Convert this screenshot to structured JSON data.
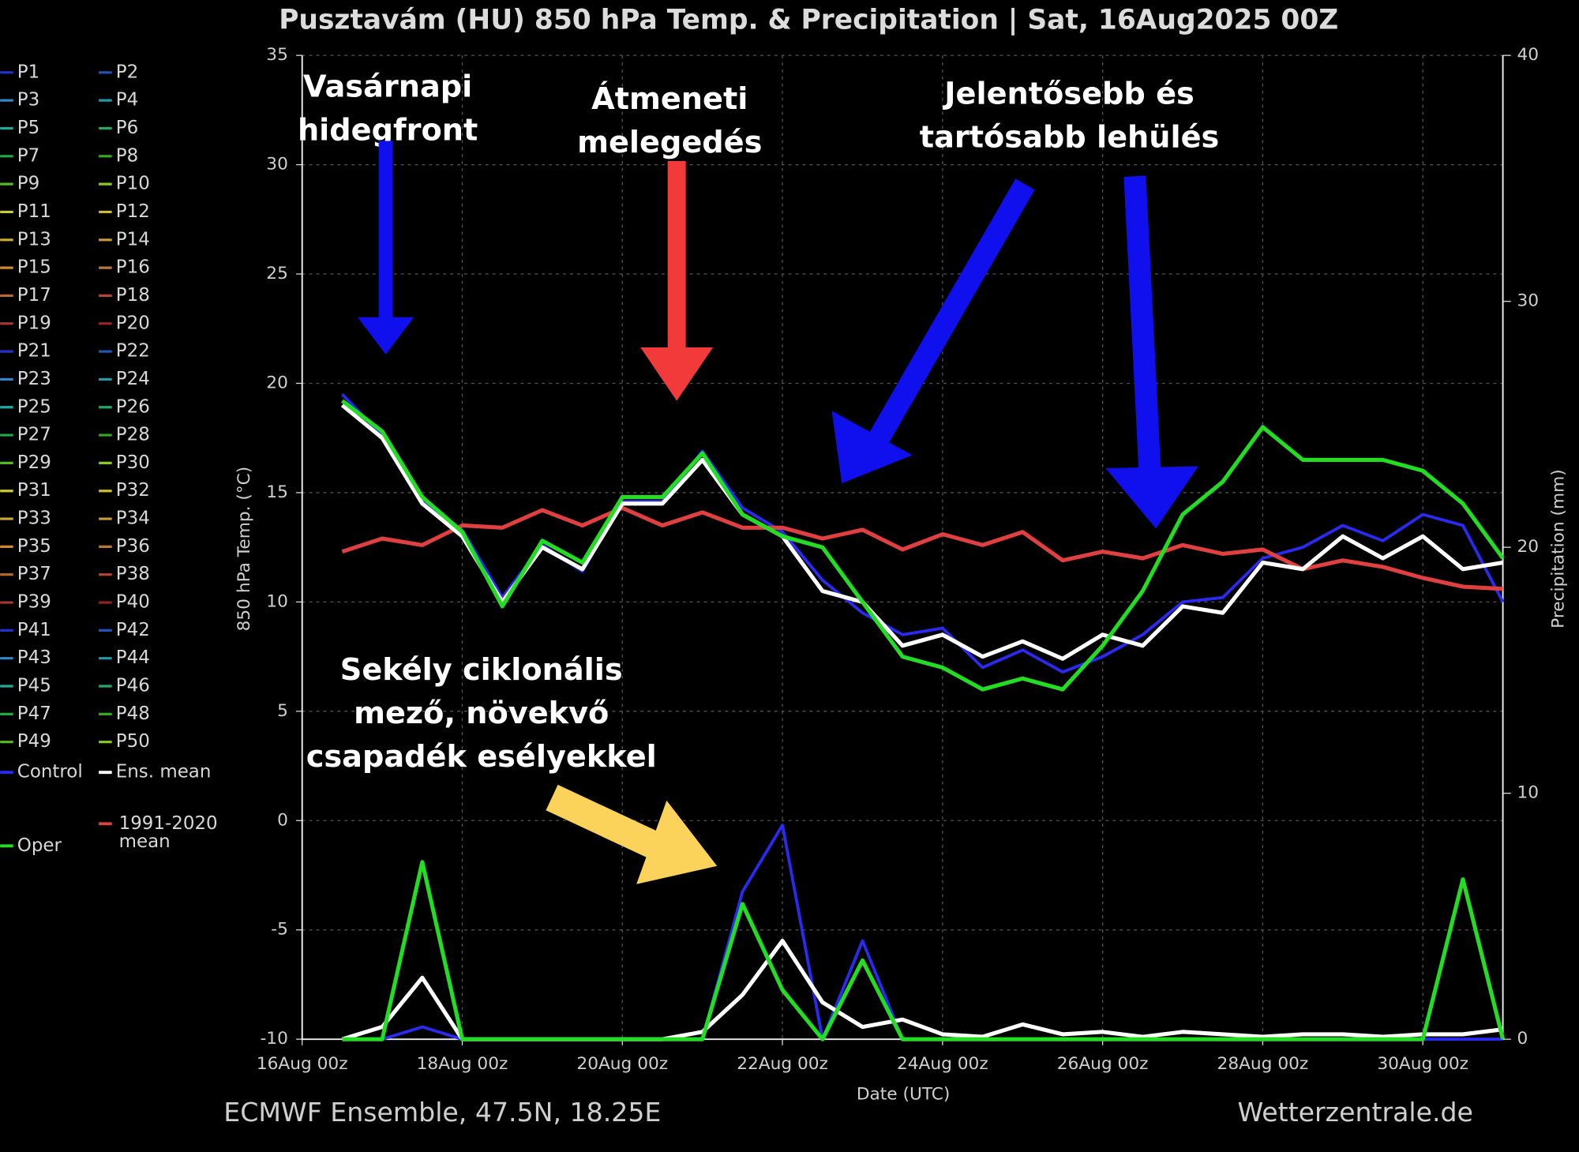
{
  "chart_data": {
    "type": "line",
    "title": "Pusztavám  (HU)  850 hPa Temp. & Precipitation | Sat, 16Aug2025 00Z",
    "ylabel": "850 hPa Temp. (°C)",
    "y2label": "Precipitation (mm)",
    "xlabel": "Date (UTC)",
    "source_left": "ECMWF Ensemble, 47.5N, 18.25E",
    "source_right": "Wetterzentrale.de",
    "xlim": [
      "2025-08-16T00:00Z",
      "2025-08-31T00:00Z"
    ],
    "xticks": [
      {
        "value": "2025-08-16T00:00Z",
        "label": "16Aug 00z"
      },
      {
        "value": "2025-08-18T00:00Z",
        "label": "18Aug 00z"
      },
      {
        "value": "2025-08-20T00:00Z",
        "label": "20Aug 00z"
      },
      {
        "value": "2025-08-22T00:00Z",
        "label": "22Aug 00z"
      },
      {
        "value": "2025-08-24T00:00Z",
        "label": "24Aug 00z"
      },
      {
        "value": "2025-08-26T00:00Z",
        "label": "26Aug 00z"
      },
      {
        "value": "2025-08-28T00:00Z",
        "label": "28Aug 00z"
      },
      {
        "value": "2025-08-30T00:00Z",
        "label": "30Aug 00z"
      }
    ],
    "ylim": [
      -10,
      35
    ],
    "yticks": [
      -10,
      -5,
      0,
      5,
      10,
      15,
      20,
      25,
      30,
      35
    ],
    "y2lim": [
      0,
      40
    ],
    "y2ticks": [
      0,
      10,
      20,
      30,
      40
    ],
    "grid": true,
    "x": [
      "2025-08-16T12:00Z",
      "2025-08-17T00:00Z",
      "2025-08-17T12:00Z",
      "2025-08-18T00:00Z",
      "2025-08-18T12:00Z",
      "2025-08-19T00:00Z",
      "2025-08-19T12:00Z",
      "2025-08-20T00:00Z",
      "2025-08-20T12:00Z",
      "2025-08-21T00:00Z",
      "2025-08-21T12:00Z",
      "2025-08-22T00:00Z",
      "2025-08-22T12:00Z",
      "2025-08-23T00:00Z",
      "2025-08-23T12:00Z",
      "2025-08-24T00:00Z",
      "2025-08-24T12:00Z",
      "2025-08-25T00:00Z",
      "2025-08-25T12:00Z",
      "2025-08-26T00:00Z",
      "2025-08-26T12:00Z",
      "2025-08-27T00:00Z",
      "2025-08-27T12:00Z",
      "2025-08-28T00:00Z",
      "2025-08-28T12:00Z",
      "2025-08-29T00:00Z",
      "2025-08-29T12:00Z",
      "2025-08-30T00:00Z",
      "2025-08-30T12:00Z",
      "2025-08-31T00:00Z"
    ],
    "series": [
      {
        "name": "Control",
        "color": "#2a2af0",
        "values": [
          19.5,
          17.6,
          14.6,
          13.3,
          10.2,
          12.6,
          11.4,
          14.6,
          14.6,
          16.9,
          14.3,
          13.2,
          11.0,
          9.5,
          8.5,
          8.8,
          7.0,
          7.8,
          6.8,
          7.5,
          8.5,
          10.0,
          10.2,
          12.0,
          12.5,
          13.5,
          12.8,
          14.0,
          13.5,
          10.0
        ],
        "y2_values": [
          0,
          0,
          0.5,
          0,
          0,
          0,
          0,
          0,
          0,
          0,
          6.0,
          8.7,
          0,
          4.0,
          0,
          0,
          0,
          0,
          0,
          0,
          0,
          0,
          0,
          0,
          0,
          0,
          0,
          0,
          0,
          0
        ]
      },
      {
        "name": "1991-2020 mean",
        "color": "#e04040",
        "values": [
          12.3,
          12.9,
          12.6,
          13.5,
          13.4,
          14.2,
          13.5,
          14.3,
          13.5,
          14.1,
          13.4,
          13.4,
          12.9,
          13.3,
          12.4,
          13.1,
          12.6,
          13.2,
          11.9,
          12.3,
          12.0,
          12.6,
          12.2,
          12.4,
          11.5,
          11.9,
          11.6,
          11.1,
          10.7,
          10.6
        ]
      },
      {
        "name": "Ens. mean",
        "color": "#ffffff",
        "values": [
          19.0,
          17.5,
          14.5,
          13.0,
          10.0,
          12.5,
          11.5,
          14.5,
          14.5,
          16.5,
          14.0,
          13.0,
          10.5,
          10.0,
          8.0,
          8.5,
          7.5,
          8.2,
          7.4,
          8.5,
          8.0,
          9.8,
          9.5,
          11.8,
          11.5,
          13.0,
          12.0,
          13.0,
          11.5,
          11.8
        ],
        "y2_values": [
          0,
          0.5,
          2.5,
          0,
          0,
          0,
          0,
          0,
          0,
          0.3,
          1.8,
          4.0,
          1.5,
          0.5,
          0.8,
          0.2,
          0.1,
          0.6,
          0.2,
          0.3,
          0.1,
          0.3,
          0.2,
          0.1,
          0.2,
          0.2,
          0.1,
          0.2,
          0.2,
          0.4
        ]
      },
      {
        "name": "Oper",
        "color": "#22dd22",
        "values": [
          19.2,
          17.8,
          14.8,
          13.2,
          9.8,
          12.8,
          11.8,
          14.8,
          14.8,
          16.8,
          14.0,
          13.0,
          12.5,
          10.0,
          7.5,
          7.0,
          6.0,
          6.5,
          6.0,
          8.0,
          10.5,
          14.0,
          15.5,
          18.0,
          16.5,
          16.5,
          16.5,
          16.0,
          14.5,
          12.0
        ],
        "y2_values": [
          0,
          0,
          7.2,
          0,
          0,
          0,
          0,
          0,
          0,
          0,
          5.5,
          2.0,
          0,
          3.2,
          0,
          0,
          0,
          0,
          0,
          0,
          0,
          0,
          0,
          0,
          0,
          0,
          0,
          0,
          6.5,
          0
        ]
      }
    ],
    "legend_members": [
      {
        "name": "P1",
        "color": "#2233cc"
      },
      {
        "name": "P2",
        "color": "#2255bb"
      },
      {
        "name": "P3",
        "color": "#3388cc"
      },
      {
        "name": "P4",
        "color": "#2299aa"
      },
      {
        "name": "P5",
        "color": "#22aa99"
      },
      {
        "name": "P6",
        "color": "#22aa66"
      },
      {
        "name": "P7",
        "color": "#22aa44"
      },
      {
        "name": "P8",
        "color": "#33aa22"
      },
      {
        "name": "P9",
        "color": "#55bb22"
      },
      {
        "name": "P10",
        "color": "#88cc22"
      },
      {
        "name": "P11",
        "color": "#cccc33"
      },
      {
        "name": "P12",
        "color": "#ccbb33"
      },
      {
        "name": "P13",
        "color": "#ccaa33"
      },
      {
        "name": "P14",
        "color": "#cc9933"
      },
      {
        "name": "P15",
        "color": "#cc8833"
      },
      {
        "name": "P16",
        "color": "#bb7733"
      },
      {
        "name": "P17",
        "color": "#bb6633"
      },
      {
        "name": "P18",
        "color": "#bb4433"
      },
      {
        "name": "P19",
        "color": "#aa3333"
      },
      {
        "name": "P20",
        "color": "#992222"
      },
      {
        "name": "P21",
        "color": "#2233cc"
      },
      {
        "name": "P22",
        "color": "#2255bb"
      },
      {
        "name": "P23",
        "color": "#3388cc"
      },
      {
        "name": "P24",
        "color": "#2299aa"
      },
      {
        "name": "P25",
        "color": "#22aa99"
      },
      {
        "name": "P26",
        "color": "#22aa66"
      },
      {
        "name": "P27",
        "color": "#22aa44"
      },
      {
        "name": "P28",
        "color": "#33aa22"
      },
      {
        "name": "P29",
        "color": "#55bb22"
      },
      {
        "name": "P30",
        "color": "#88cc22"
      },
      {
        "name": "P31",
        "color": "#cccc33"
      },
      {
        "name": "P32",
        "color": "#ccbb33"
      },
      {
        "name": "P33",
        "color": "#ccaa33"
      },
      {
        "name": "P34",
        "color": "#cc9933"
      },
      {
        "name": "P35",
        "color": "#cc8833"
      },
      {
        "name": "P36",
        "color": "#bb7733"
      },
      {
        "name": "P37",
        "color": "#bb6633"
      },
      {
        "name": "P38",
        "color": "#bb4433"
      },
      {
        "name": "P39",
        "color": "#aa3333"
      },
      {
        "name": "P40",
        "color": "#992222"
      },
      {
        "name": "P41",
        "color": "#2233cc"
      },
      {
        "name": "P42",
        "color": "#2255bb"
      },
      {
        "name": "P43",
        "color": "#3388cc"
      },
      {
        "name": "P44",
        "color": "#2299aa"
      },
      {
        "name": "P45",
        "color": "#22aa99"
      },
      {
        "name": "P46",
        "color": "#22aa66"
      },
      {
        "name": "P47",
        "color": "#22aa44"
      },
      {
        "name": "P48",
        "color": "#33aa22"
      },
      {
        "name": "P49",
        "color": "#55bb22"
      },
      {
        "name": "P50",
        "color": "#88cc22"
      }
    ],
    "annotations": [
      [
        "Vasárnapi",
        "hidegfront"
      ],
      [
        "Átmeneti",
        "melegedés"
      ],
      [
        "Jelentősebb és",
        "tartósabb lehülés"
      ],
      [
        "Sekély ciklonális",
        "mező, növekvő",
        "csapadék esélyekkel"
      ]
    ]
  }
}
